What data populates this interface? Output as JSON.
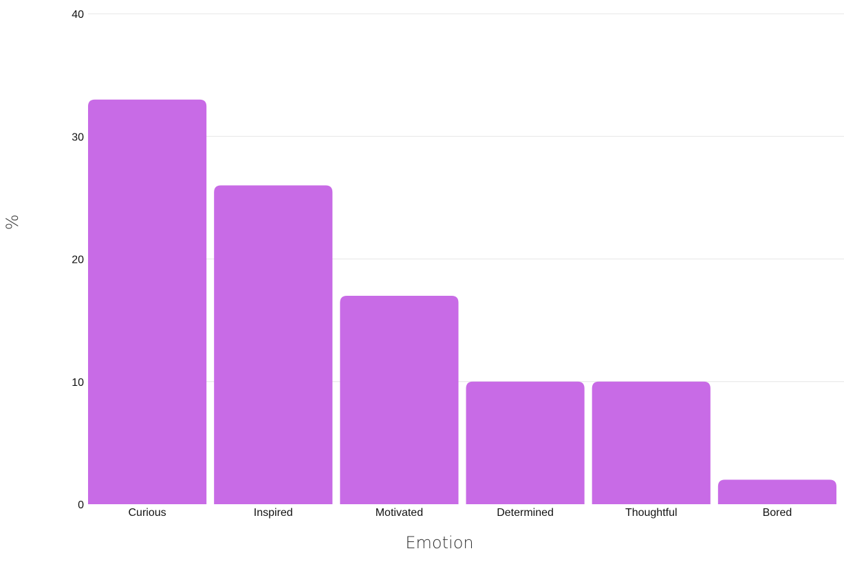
{
  "chart_data": {
    "type": "bar",
    "title": "",
    "xlabel": "Emotion",
    "ylabel": "%",
    "categories": [
      "Curious",
      "Inspired",
      "Motivated",
      "Determined",
      "Thoughtful",
      "Bored"
    ],
    "values": [
      33,
      26,
      17,
      10,
      10,
      2
    ],
    "ylim": [
      0,
      40
    ],
    "yticks": [
      "0",
      "10",
      "20",
      "30",
      "40"
    ],
    "grid": true,
    "legend": "none",
    "bar_color": "#c86be6"
  }
}
